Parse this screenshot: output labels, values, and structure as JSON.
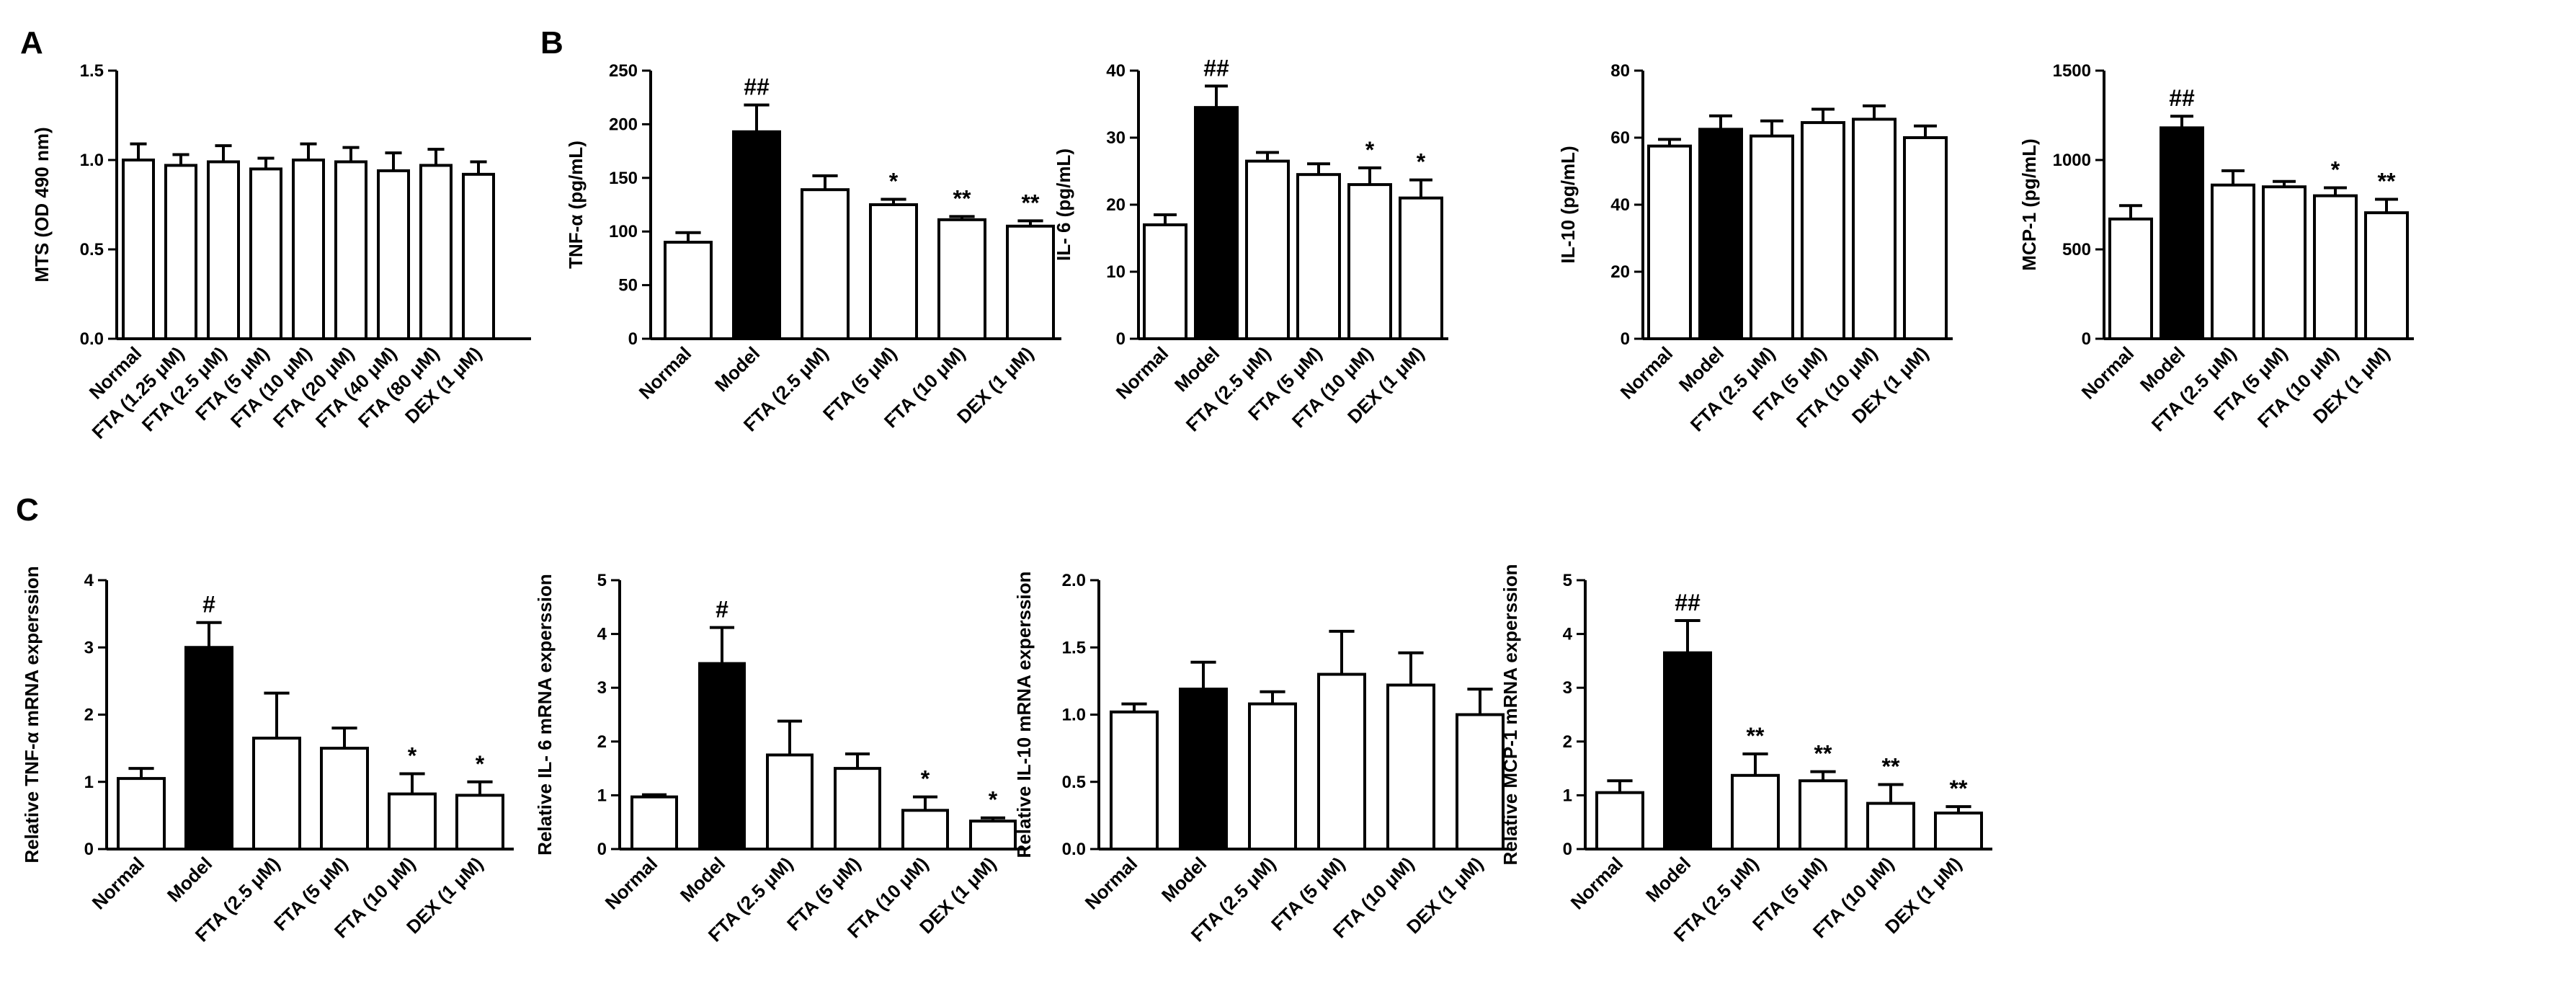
{
  "panels": [
    "A",
    "B",
    "C"
  ],
  "chart_data": [
    {
      "type": "bar",
      "panel": "A",
      "ylabel": "MTS (OD 490 nm)",
      "ylim": [
        0,
        1.5
      ],
      "yticks": [
        "0.0",
        "0.5",
        "1.0",
        "1.5"
      ],
      "categories": [
        "Normal",
        "FTA (1.25 μM)",
        "FTA (2.5 μM)",
        "FTA (5 μM)",
        "FTA (10 μM)",
        "FTA (20 μM)",
        "FTA (40 μM)",
        "FTA (80 μM)",
        "DEX (1 μM)"
      ],
      "values": [
        1.0,
        0.97,
        0.99,
        0.95,
        1.0,
        0.99,
        0.94,
        0.97,
        0.92
      ],
      "errors": [
        0.09,
        0.06,
        0.09,
        0.06,
        0.09,
        0.08,
        0.1,
        0.09,
        0.07
      ],
      "fills": [
        "white",
        "white",
        "white",
        "white",
        "white",
        "white",
        "white",
        "white",
        "white"
      ],
      "annotations": [
        "",
        "",
        "",
        "",
        "",
        "",
        "",
        "",
        ""
      ]
    },
    {
      "type": "bar",
      "panel": "B",
      "ylabel": "TNF-α  (pg/mL)",
      "ylim": [
        0,
        250
      ],
      "yticks": [
        "0",
        "50",
        "100",
        "150",
        "200",
        "250"
      ],
      "categories": [
        "Normal",
        "Model",
        "FTA (2.5 μM)",
        "FTA (5 μM)",
        "FTA (10 μM)",
        "DEX (1 μM)"
      ],
      "values": [
        90,
        193,
        139,
        125,
        111,
        105
      ],
      "errors": [
        9,
        25,
        13,
        5,
        3,
        5
      ],
      "fills": [
        "white",
        "black",
        "white",
        "white",
        "white",
        "white"
      ],
      "annotations": [
        "",
        "##",
        "",
        "*",
        "**",
        "**"
      ]
    },
    {
      "type": "bar",
      "panel": "",
      "ylabel": "IL- 6 (pg/mL)",
      "ylim": [
        0,
        40
      ],
      "yticks": [
        "0",
        "10",
        "20",
        "30",
        "40"
      ],
      "categories": [
        "Normal",
        "Model",
        "FTA (2.5 μM)",
        "FTA (5 μM)",
        "FTA (10 μM)",
        "DEX (1 μM)"
      ],
      "values": [
        17,
        34.5,
        26.5,
        24.5,
        23,
        21
      ],
      "errors": [
        1.5,
        3.2,
        1.3,
        1.6,
        2.5,
        2.7
      ],
      "fills": [
        "white",
        "black",
        "white",
        "white",
        "white",
        "white"
      ],
      "annotations": [
        "",
        "##",
        "",
        "",
        "*",
        "*"
      ]
    },
    {
      "type": "bar",
      "panel": "",
      "ylabel": "IL-10 (pg/mL)",
      "ylim": [
        0,
        80
      ],
      "yticks": [
        "0",
        "20",
        "40",
        "60",
        "80"
      ],
      "categories": [
        "Normal",
        "Model",
        "FTA (2.5 μM)",
        "FTA (5 μM)",
        "FTA (10 μM)",
        "DEX (1 μM)"
      ],
      "values": [
        57.5,
        62.5,
        60.5,
        64.5,
        65.5,
        60
      ],
      "errors": [
        2,
        4,
        4.5,
        4,
        4,
        3.5
      ],
      "fills": [
        "white",
        "black",
        "white",
        "white",
        "white",
        "white"
      ],
      "annotations": [
        "",
        "",
        "",
        "",
        "",
        ""
      ]
    },
    {
      "type": "bar",
      "panel": "",
      "ylabel": "MCP-1 (pg/mL)",
      "ylim": [
        0,
        1500
      ],
      "yticks": [
        "0",
        "500",
        "1000",
        "1500"
      ],
      "categories": [
        "Normal",
        "Model",
        "FTA (2.5 μM)",
        "FTA (5 μM)",
        "FTA (10 μM)",
        "DEX (1 μM)"
      ],
      "values": [
        670,
        1180,
        860,
        850,
        800,
        705
      ],
      "errors": [
        75,
        65,
        80,
        30,
        45,
        75
      ],
      "fills": [
        "white",
        "black",
        "white",
        "white",
        "white",
        "white"
      ],
      "annotations": [
        "",
        "##",
        "",
        "",
        "*",
        "**"
      ]
    },
    {
      "type": "bar",
      "panel": "C",
      "ylabel": "Relative TNF-α  mRNA experssion",
      "ylim": [
        0,
        4
      ],
      "yticks": [
        "0",
        "1",
        "2",
        "3",
        "4"
      ],
      "categories": [
        "Normal",
        "Model",
        "FTA (2.5 μM)",
        "FTA (5 μM)",
        "FTA (10 μM)",
        "DEX (1 μM)"
      ],
      "values": [
        1.05,
        3.0,
        1.65,
        1.5,
        0.82,
        0.8
      ],
      "errors": [
        0.15,
        0.37,
        0.67,
        0.3,
        0.3,
        0.2
      ],
      "fills": [
        "white",
        "black",
        "white",
        "white",
        "white",
        "white"
      ],
      "annotations": [
        "",
        "#",
        "",
        "",
        "*",
        "*"
      ]
    },
    {
      "type": "bar",
      "panel": "",
      "ylabel": "Relative IL- 6 mRNA experssion",
      "ylim": [
        0,
        5
      ],
      "yticks": [
        "0",
        "1",
        "2",
        "3",
        "4",
        "5"
      ],
      "categories": [
        "Normal",
        "Model",
        "FTA (2.5 μM)",
        "FTA (5 μM)",
        "FTA (10 μM)",
        "DEX (1 μM)"
      ],
      "values": [
        0.97,
        3.45,
        1.75,
        1.5,
        0.72,
        0.52
      ],
      "errors": [
        0.04,
        0.67,
        0.63,
        0.27,
        0.25,
        0.06
      ],
      "fills": [
        "white",
        "black",
        "white",
        "white",
        "white",
        "white"
      ],
      "annotations": [
        "",
        "#",
        "",
        "",
        "*",
        "*"
      ]
    },
    {
      "type": "bar",
      "panel": "",
      "ylabel": "Relative IL-10 mRNA experssion",
      "ylim": [
        0,
        2.0
      ],
      "yticks": [
        "0.0",
        "0.5",
        "1.0",
        "1.5",
        "2.0"
      ],
      "categories": [
        "Normal",
        "Model",
        "FTA (2.5 μM)",
        "FTA (5 μM)",
        "FTA (10 μM)",
        "DEX (1 μM)"
      ],
      "values": [
        1.02,
        1.19,
        1.08,
        1.3,
        1.22,
        1.0
      ],
      "errors": [
        0.06,
        0.2,
        0.09,
        0.32,
        0.24,
        0.19
      ],
      "fills": [
        "white",
        "black",
        "white",
        "white",
        "white",
        "white"
      ],
      "annotations": [
        "",
        "",
        "",
        "",
        "",
        ""
      ]
    },
    {
      "type": "bar",
      "panel": "",
      "ylabel": "Relative MCP-1 mRNA experssion",
      "ylim": [
        0,
        5
      ],
      "yticks": [
        "0",
        "1",
        "2",
        "3",
        "4",
        "5"
      ],
      "categories": [
        "Normal",
        "Model",
        "FTA (2.5 μM)",
        "FTA (5 μM)",
        "FTA (10 μM)",
        "DEX (1 μM)"
      ],
      "values": [
        1.05,
        3.65,
        1.37,
        1.27,
        0.85,
        0.67
      ],
      "errors": [
        0.22,
        0.6,
        0.4,
        0.17,
        0.35,
        0.12
      ],
      "fills": [
        "white",
        "black",
        "white",
        "white",
        "white",
        "white"
      ],
      "annotations": [
        "",
        "##",
        "**",
        "**",
        "**",
        "**"
      ]
    }
  ]
}
